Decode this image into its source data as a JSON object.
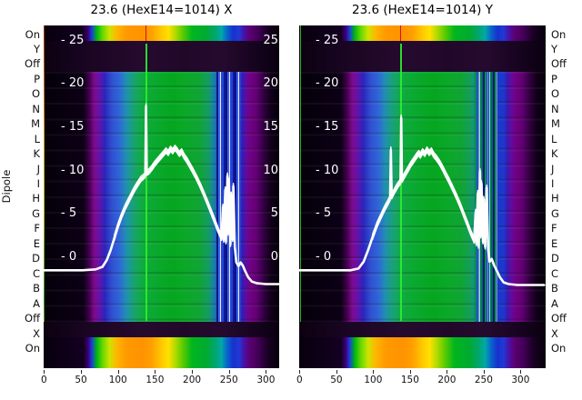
{
  "window": {
    "background": "#ffffff"
  },
  "panels": {
    "left": {
      "title": "23.6 (HexE14=1014) X"
    },
    "right": {
      "title": "23.6 (HexE14=1014) Y"
    }
  },
  "y_axis": {
    "label": "Dipole",
    "row_labels": [
      "On",
      "Y",
      "Off",
      "P",
      "O",
      "N",
      "M",
      "L",
      "K",
      "J",
      "I",
      "H",
      "G",
      "F",
      "E",
      "D",
      "C",
      "B",
      "A",
      "Off",
      "X",
      "On"
    ],
    "inner_tick_values": [
      25,
      20,
      15,
      10,
      5,
      0
    ],
    "inner_tick_labels_left": [
      "- 25",
      "- 20",
      "- 15",
      "- 10",
      "- 5",
      "- 0"
    ],
    "inner_tick_labels_right": [
      "25",
      "20",
      "15",
      "10",
      "5",
      "0"
    ]
  },
  "x_axis": {
    "tick_values": [
      0,
      50,
      100,
      150,
      200,
      250,
      300
    ],
    "tick_labels": [
      "0",
      "50",
      "100",
      "150",
      "200",
      "250",
      "300"
    ]
  },
  "palette": {
    "curve": "#ffffff",
    "marker_line_green": "#2cf02c",
    "marker_line_red": "#d01414",
    "edge_line_right_panel": "#28c828",
    "dark_row": "#1e0726",
    "purple": "#720082",
    "blue": "#1c38cc",
    "green": "#08a828",
    "orange": "#ff9a00",
    "title_color": "#000000"
  },
  "chart_data": {
    "type": "heatmap",
    "subtype": "heatmap-with-line-overlay",
    "colormap": "spectral-rainbow (black-purple-blue-green-yellow-orange-red)",
    "x_range": [
      0,
      330
    ],
    "value_ticks": [
      0,
      5,
      10,
      15,
      20,
      25
    ],
    "rows": [
      "On",
      "Y",
      "Off",
      "P",
      "O",
      "N",
      "M",
      "L",
      "K",
      "J",
      "I",
      "H",
      "G",
      "F",
      "E",
      "D",
      "C",
      "B",
      "A",
      "Off",
      "X",
      "On"
    ],
    "row_style": {
      "bright_rainbow_rows": [
        "On (top)",
        "X (bottom)",
        "On (bottom)"
      ],
      "dark_rows": [
        "Y",
        "Off (top)",
        "Off (bottom)"
      ],
      "gradient_block_rows": "P through A"
    },
    "features": {
      "vertical_green_marker_x": 138,
      "vertical_stripe_cluster_x": [
        238,
        268
      ]
    },
    "panels": [
      {
        "title": "23.6 (HexE14=1014) X",
        "line_points": [
          [
            0,
            -1.5
          ],
          [
            52,
            -1.5
          ],
          [
            70,
            -1.4
          ],
          [
            79,
            -1.1
          ],
          [
            85,
            -0.3
          ],
          [
            90,
            0.8
          ],
          [
            95,
            2.2
          ],
          [
            100,
            3.6
          ],
          [
            105,
            4.8
          ],
          [
            110,
            5.8
          ],
          [
            116,
            6.8
          ],
          [
            122,
            7.8
          ],
          [
            127,
            8.5
          ],
          [
            131,
            9.0
          ],
          [
            135,
            9.3
          ],
          [
            137,
            9.5
          ],
          [
            138,
            17.4
          ],
          [
            139,
            9.7
          ],
          [
            142,
            9.9
          ],
          [
            146,
            10.3
          ],
          [
            150,
            10.8
          ],
          [
            154,
            11.2
          ],
          [
            158,
            11.6
          ],
          [
            162,
            12.0
          ],
          [
            165,
            12.3
          ],
          [
            168,
            12.0
          ],
          [
            171,
            12.5
          ],
          [
            174,
            12.2
          ],
          [
            177,
            12.6
          ],
          [
            180,
            12.3
          ],
          [
            183,
            11.9
          ],
          [
            186,
            12.2
          ],
          [
            189,
            11.7
          ],
          [
            193,
            11.2
          ],
          [
            197,
            10.6
          ],
          [
            201,
            10.0
          ],
          [
            206,
            9.2
          ],
          [
            211,
            8.3
          ],
          [
            216,
            7.3
          ],
          [
            221,
            6.3
          ],
          [
            226,
            5.2
          ],
          [
            231,
            4.1
          ],
          [
            235,
            3.2
          ],
          [
            238,
            2.6
          ],
          [
            240,
            2.2
          ],
          [
            242,
            5.8
          ],
          [
            243,
            2.0
          ],
          [
            245,
            7.8
          ],
          [
            246,
            1.8
          ],
          [
            248,
            9.4
          ],
          [
            249,
            2.8
          ],
          [
            250,
            8.8
          ],
          [
            252,
            1.5
          ],
          [
            253,
            7.2
          ],
          [
            255,
            2.1
          ],
          [
            256,
            8.2
          ],
          [
            258,
            1.2
          ],
          [
            260,
            -0.6
          ],
          [
            263,
            -1.0
          ],
          [
            266,
            -0.6
          ],
          [
            269,
            -1.0
          ],
          [
            272,
            -1.6
          ],
          [
            276,
            -2.3
          ],
          [
            281,
            -2.8
          ],
          [
            288,
            -3.0
          ],
          [
            300,
            -3.1
          ],
          [
            318,
            -3.1
          ]
        ]
      },
      {
        "title": "23.6 (HexE14=1014) Y",
        "line_points": [
          [
            0,
            -1.5
          ],
          [
            69,
            -1.5
          ],
          [
            80,
            -1.3
          ],
          [
            87,
            -0.5
          ],
          [
            93,
            0.8
          ],
          [
            99,
            2.3
          ],
          [
            105,
            3.7
          ],
          [
            111,
            4.8
          ],
          [
            116,
            5.7
          ],
          [
            120,
            6.3
          ],
          [
            123,
            6.8
          ],
          [
            124,
            12.4
          ],
          [
            125,
            7.0
          ],
          [
            128,
            7.5
          ],
          [
            132,
            8.1
          ],
          [
            135,
            8.5
          ],
          [
            137,
            8.7
          ],
          [
            138,
            16.1
          ],
          [
            139,
            8.9
          ],
          [
            143,
            9.5
          ],
          [
            147,
            10.1
          ],
          [
            151,
            10.7
          ],
          [
            155,
            11.2
          ],
          [
            159,
            11.7
          ],
          [
            162,
            12.0
          ],
          [
            164,
            11.7
          ],
          [
            167,
            12.2
          ],
          [
            170,
            11.9
          ],
          [
            173,
            12.4
          ],
          [
            176,
            12.0
          ],
          [
            179,
            12.3
          ],
          [
            182,
            11.8
          ],
          [
            186,
            11.4
          ],
          [
            190,
            10.9
          ],
          [
            194,
            10.3
          ],
          [
            198,
            9.6
          ],
          [
            203,
            8.8
          ],
          [
            208,
            7.9
          ],
          [
            213,
            7.0
          ],
          [
            218,
            6.0
          ],
          [
            223,
            4.9
          ],
          [
            228,
            3.8
          ],
          [
            232,
            2.9
          ],
          [
            235,
            2.3
          ],
          [
            237,
            1.9
          ],
          [
            239,
            5.2
          ],
          [
            240,
            1.6
          ],
          [
            242,
            7.4
          ],
          [
            243,
            1.3
          ],
          [
            245,
            9.9
          ],
          [
            246,
            2.5
          ],
          [
            247,
            8.5
          ],
          [
            249,
            1.8
          ],
          [
            250,
            6.7
          ],
          [
            252,
            1.2
          ],
          [
            254,
            8.0
          ],
          [
            256,
            0.9
          ],
          [
            258,
            -0.5
          ],
          [
            261,
            -0.2
          ],
          [
            264,
            -0.9
          ],
          [
            268,
            -1.6
          ],
          [
            272,
            -2.3
          ],
          [
            277,
            -2.9
          ],
          [
            284,
            -3.1
          ],
          [
            296,
            -3.2
          ],
          [
            332,
            -3.2
          ]
        ]
      }
    ]
  }
}
